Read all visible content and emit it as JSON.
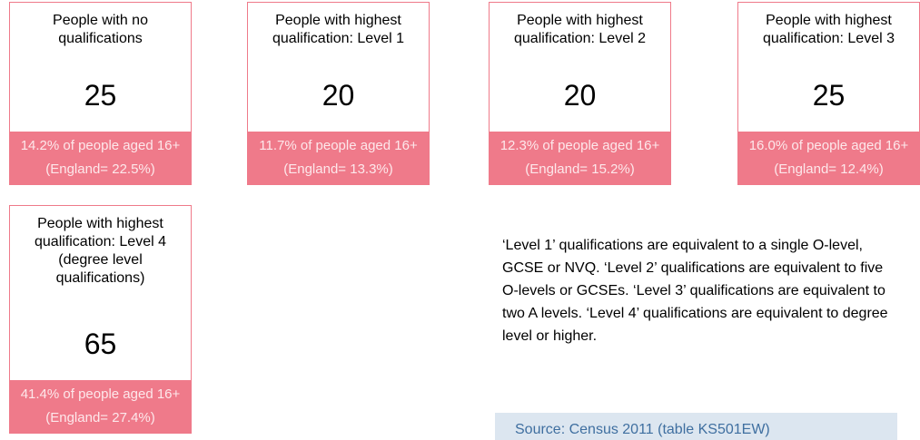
{
  "cards": [
    {
      "title": "People with no qualifications",
      "value": 25,
      "footer": "14.2% of people aged 16+ (England= 22.5%)"
    },
    {
      "title": "People with highest qualification: Level 1",
      "value": 20,
      "footer": "11.7% of people aged 16+ (England= 13.3%)"
    },
    {
      "title": "People with highest qualification: Level 2",
      "value": 20,
      "footer": "12.3% of people aged 16+ (England= 15.2%)"
    },
    {
      "title": "People with highest qualification: Level 3",
      "value": 25,
      "footer": "16.0% of people aged 16+ (England= 12.4%)"
    },
    {
      "title": "People with highest qualification: Level 4 (degree level qualifications)",
      "value": 65,
      "footer": "41.4% of people aged 16+ (England= 27.4%)"
    }
  ],
  "note": "‘Level 1’ qualifications are equivalent to a single O-level, GCSE or NVQ. ‘Level 2’ qualifications are equivalent to five O-levels or GCSEs. ‘Level 3’ qualifications are equivalent to two A levels. ‘Level 4’ qualifications are equivalent to degree level or higher.",
  "source": "Source: Census 2011 (table KS501EW)"
}
